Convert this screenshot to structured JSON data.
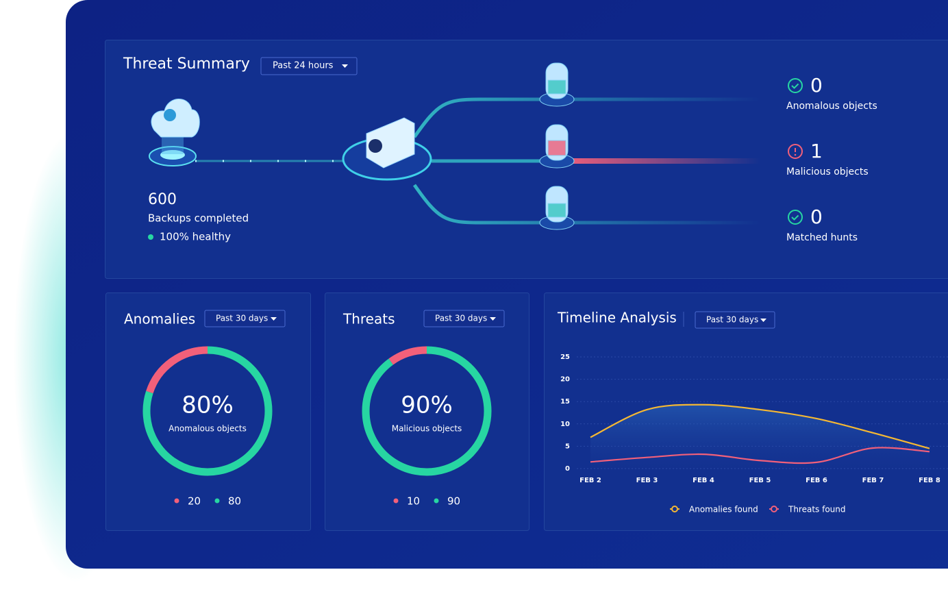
{
  "threat_summary": {
    "title": "Threat Summary",
    "range": "Past 24 hours",
    "backups": {
      "count": 600,
      "label": "Backups completed",
      "health": "100% healthy"
    },
    "stats": [
      {
        "value": 0,
        "label": "Anomalous objects",
        "status": "ok"
      },
      {
        "value": 1,
        "label": "Malicious objects",
        "status": "alert"
      },
      {
        "value": 0,
        "label": "Matched hunts",
        "status": "ok"
      }
    ]
  },
  "anomalies": {
    "type": "donut",
    "title": "Anomalies",
    "range": "Past 30 days",
    "center_label": "80%",
    "center_caption": "Anomalous objects",
    "values": [
      20,
      80
    ],
    "colors": [
      "#f2607a",
      "#27d6a2"
    ]
  },
  "threats": {
    "type": "donut",
    "title": "Threats",
    "range": "Past 30 days",
    "center_label": "90%",
    "center_caption": "Malicious objects",
    "values": [
      10,
      90
    ],
    "colors": [
      "#f2607a",
      "#27d6a2"
    ]
  },
  "timeline": {
    "type": "line",
    "title": "Timeline Analysis",
    "range": "Past 30 days",
    "categories": [
      "FEB 2",
      "FEB 3",
      "FEB 4",
      "FEB 5",
      "FEB 6",
      "FEB 7",
      "FEB 8"
    ],
    "ylim": [
      0,
      25
    ],
    "yticks": [
      0,
      5,
      10,
      15,
      20,
      25
    ],
    "grid": true,
    "series": [
      {
        "name": "Anomalies found",
        "color": "#f5b833",
        "values": [
          7,
          13.2,
          14.3,
          13.2,
          11.2,
          8,
          4.5
        ],
        "area": true
      },
      {
        "name": "Threats found",
        "color": "#f2607a",
        "values": [
          1.5,
          2.5,
          3.2,
          1.8,
          1.4,
          4.6,
          3.8
        ]
      }
    ]
  }
}
